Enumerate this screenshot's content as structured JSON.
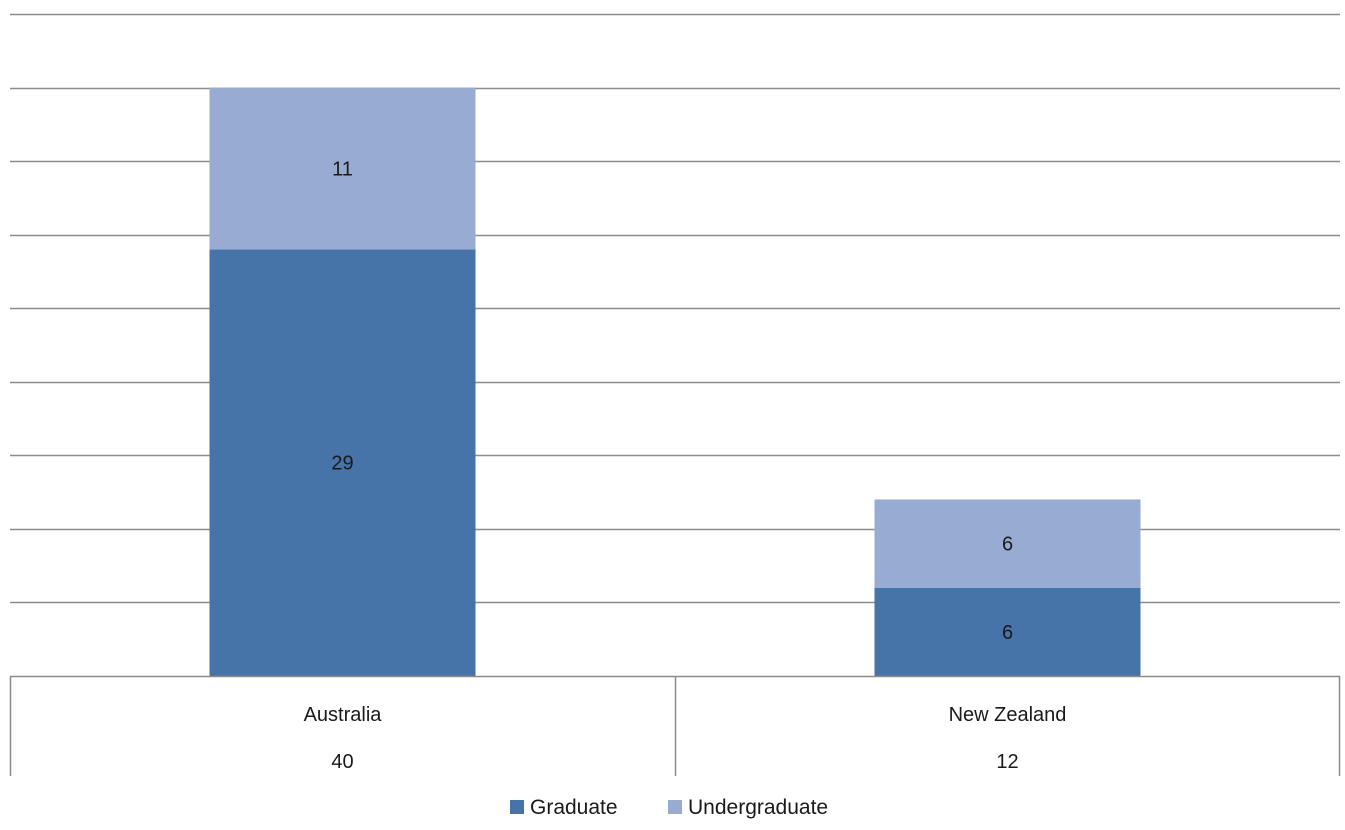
{
  "chart_data": {
    "type": "bar",
    "stacked": true,
    "categories": [
      "Australia",
      "New Zealand"
    ],
    "series": [
      {
        "name": "Graduate",
        "values": [
          29,
          6
        ],
        "color": "#4673a8"
      },
      {
        "name": "Undergraduate",
        "values": [
          11,
          6
        ],
        "color": "#97abd3"
      }
    ],
    "totals": [
      "40",
      "12"
    ],
    "ylim": [
      0,
      45
    ],
    "grid": true,
    "legend": "bottom",
    "data_labels": true
  }
}
